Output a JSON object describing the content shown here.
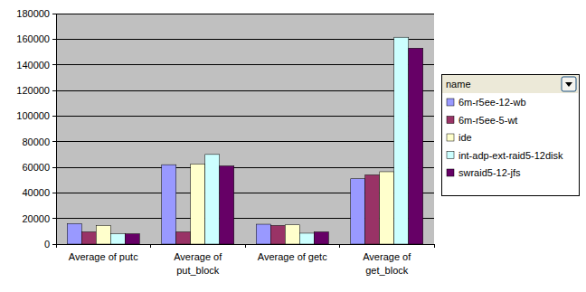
{
  "chart_data": {
    "type": "bar",
    "categories": [
      "Average of putc",
      "Average of put_block",
      "Average of getc",
      "Average of get_block"
    ],
    "series": [
      {
        "name": "6m-r5ee-12-wb",
        "color": "#9999ff",
        "values": [
          16000,
          62000,
          15500,
          51000
        ]
      },
      {
        "name": "6m-r5ee-5-wt",
        "color": "#993366",
        "values": [
          9500,
          9500,
          14500,
          54000
        ]
      },
      {
        "name": "ide",
        "color": "#ffffcc",
        "values": [
          14500,
          62500,
          15000,
          56500
        ]
      },
      {
        "name": "int-adp-ext-raid5-12disk",
        "color": "#ccffff",
        "values": [
          8000,
          70000,
          8500,
          161500
        ]
      },
      {
        "name": "swraid5-12-jfs",
        "color": "#660066",
        "values": [
          8000,
          61000,
          9500,
          153000
        ]
      }
    ],
    "legend_title": "name",
    "ylim": [
      0,
      180000
    ],
    "yticks": [
      0,
      20000,
      40000,
      60000,
      80000,
      100000,
      120000,
      140000,
      160000,
      180000
    ],
    "grid": true,
    "legend": "right"
  }
}
